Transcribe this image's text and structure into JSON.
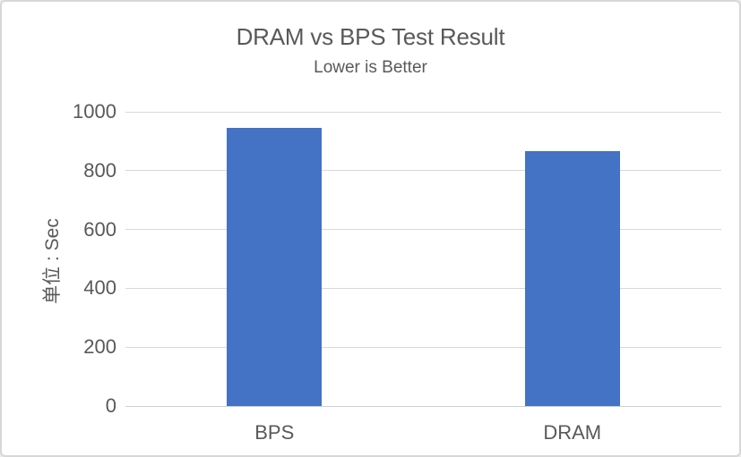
{
  "frame": {
    "background": "#ffffff",
    "border_color": "#d7d7d7"
  },
  "chart_data": {
    "type": "bar",
    "title": "DRAM vs BPS Test Result",
    "subtitle": "Lower is Better",
    "xlabel": "",
    "ylabel": "单位 : Sec",
    "categories": [
      "BPS",
      "DRAM"
    ],
    "values": [
      945,
      865
    ],
    "yticks": [
      0,
      200,
      400,
      600,
      800,
      1000
    ],
    "ylim": [
      0,
      1000
    ],
    "grid": true,
    "legend_position": "none",
    "bar_color": "#4472c4",
    "gridline_color": "#d9d9d9",
    "axis_line_color": "#d0d0d0",
    "text_color": "#595959"
  }
}
